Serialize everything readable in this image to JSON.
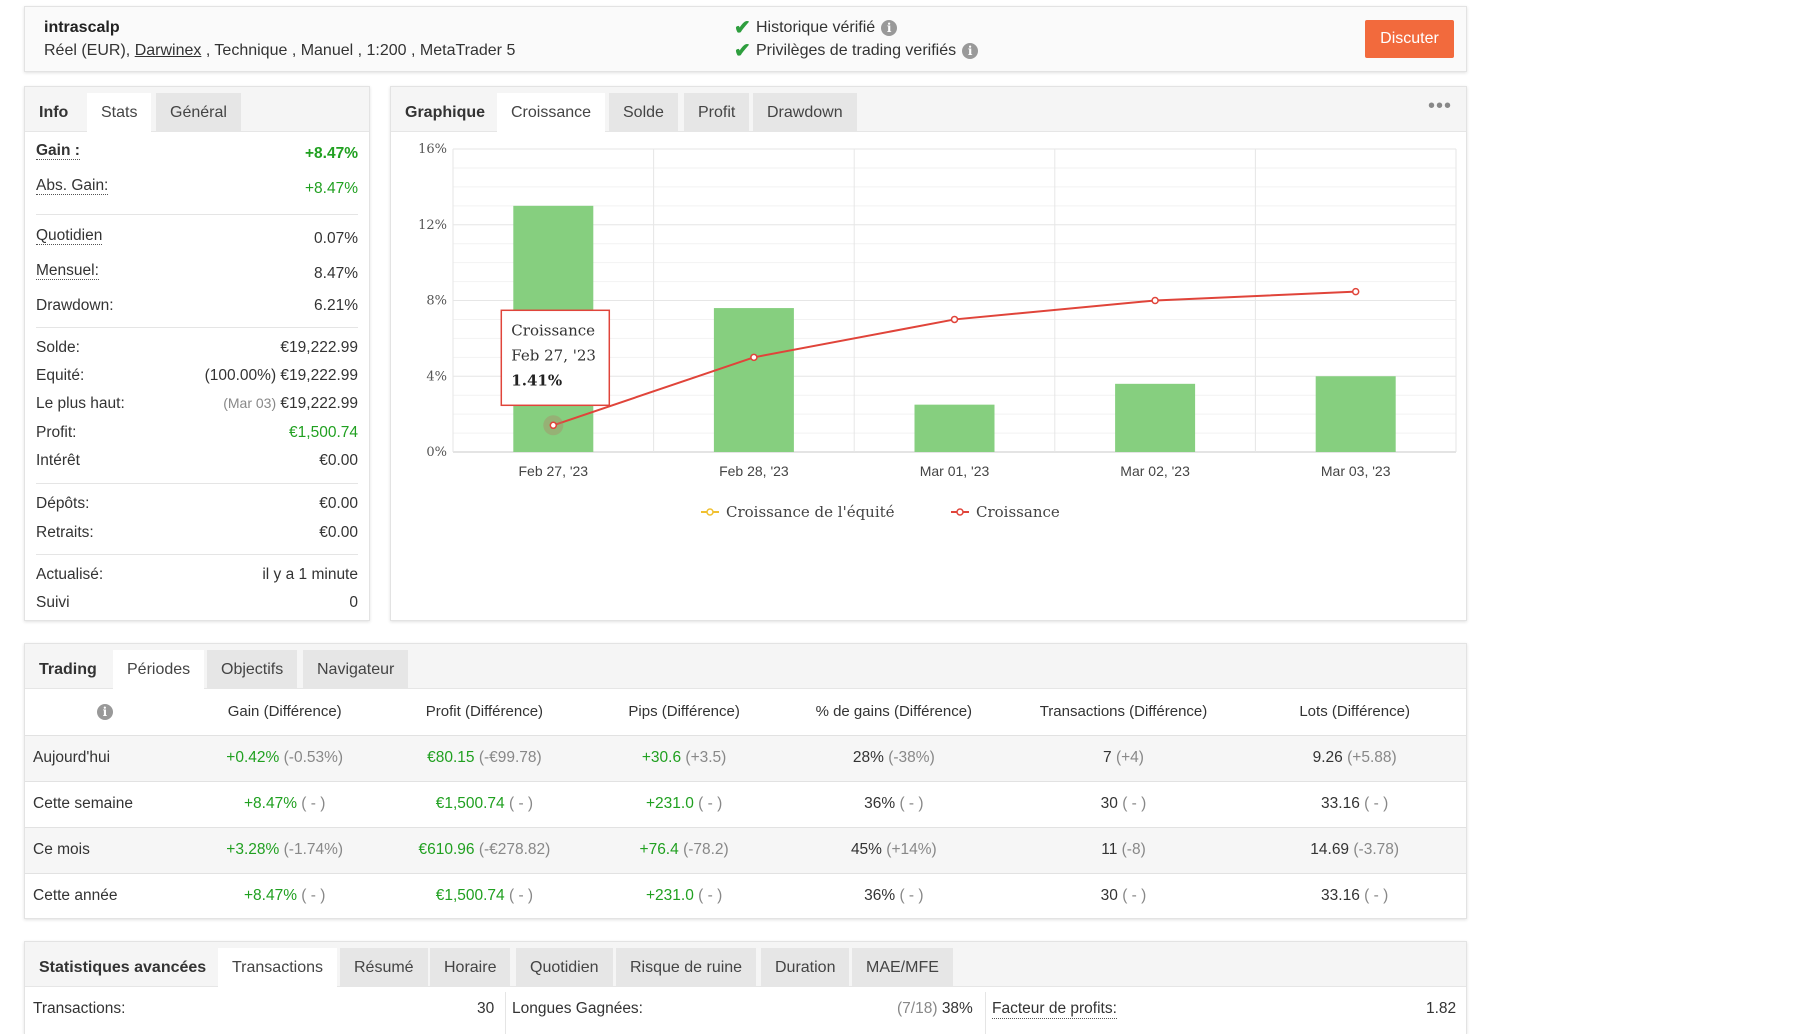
{
  "header": {
    "account_name": "intrascalp",
    "account_prefix": "Réel (EUR), ",
    "account_broker": "Darwinex",
    "account_suffix": " , Technique , Manuel , 1:200 , MetaTrader 5",
    "verified_history": "Historique vérifié",
    "verified_privileges": "Privilèges de trading verifiés",
    "discuss_button": "Discuter"
  },
  "info_panel": {
    "tabs": [
      "Info",
      "Stats",
      "Général"
    ],
    "gain_label": "Gain :",
    "gain_value": "+8.47%",
    "abs_gain_label": "Abs. Gain:",
    "abs_gain_value": "+8.47%",
    "daily_label": "Quotidien",
    "daily_value": "0.07%",
    "monthly_label": "Mensuel:",
    "monthly_value": "8.47%",
    "drawdown_label": "Drawdown:",
    "drawdown_value": "6.21%",
    "balance_label": "Solde:",
    "balance_value": "€19,222.99",
    "equity_label": "Equité:",
    "equity_pct": "(100.00%)",
    "equity_value": "€19,222.99",
    "highest_label": "Le plus haut:",
    "highest_date": "(Mar 03)",
    "highest_value": "€19,222.99",
    "profit_label": "Profit:",
    "profit_value": "€1,500.74",
    "interest_label": "Intérêt",
    "interest_value": "€0.00",
    "deposits_label": "Dépôts:",
    "deposits_value": "€0.00",
    "withdrawals_label": "Retraits:",
    "withdrawals_value": "€0.00",
    "updated_label": "Actualisé:",
    "updated_value": "il y a 1 minute",
    "followers_label": "Suivi",
    "followers_value": "0"
  },
  "chart_panel": {
    "tabs": [
      "Graphique",
      "Croissance",
      "Solde",
      "Profit",
      "Drawdown"
    ],
    "more_icon": "more-dots-icon"
  },
  "chart_data": {
    "type": "bar",
    "categories": [
      "Feb 27, '23",
      "Feb 28, '23",
      "Mar 01, '23",
      "Mar 02, '23",
      "Mar 03, '23"
    ],
    "series": [
      {
        "name": "Croissance de l'équité",
        "type": "bar",
        "color": "#86cf7f",
        "values": [
          13.0,
          7.6,
          2.5,
          3.6,
          4.0
        ]
      },
      {
        "name": "Croissance",
        "type": "line",
        "color": "#e0443a",
        "values": [
          1.41,
          5.0,
          7.0,
          8.0,
          8.47
        ]
      }
    ],
    "ylim": [
      0,
      16
    ],
    "yticks": [
      "0%",
      "4%",
      "8%",
      "12%",
      "16%"
    ],
    "tooltip": {
      "title": "Croissance",
      "date": "Feb 27, '23",
      "value": "1.41%"
    },
    "legend_position": "bottom",
    "grid": true
  },
  "trading_panel": {
    "tabs": [
      "Trading",
      "Périodes",
      "Objectifs",
      "Navigateur"
    ],
    "columns": [
      "Gain (Différence)",
      "Profit (Différence)",
      "Pips (Différence)",
      "% de gains (Différence)",
      "Transactions (Différence)",
      "Lots (Différence)"
    ],
    "rows": [
      {
        "label": "Aujourd'hui",
        "gain": "+0.42%",
        "gain_diff": "(-0.53%)",
        "profit": "€80.15",
        "profit_diff": "(-€99.78)",
        "pips": "+30.6",
        "pips_diff": "(+3.5)",
        "win": "28%",
        "win_diff": "(-38%)",
        "trades": "7",
        "trades_diff": "(+4)",
        "lots": "9.26",
        "lots_diff": "(+5.88)"
      },
      {
        "label": "Cette semaine",
        "gain": "+8.47%",
        "gain_diff": "( - )",
        "profit": "€1,500.74",
        "profit_diff": "( - )",
        "pips": "+231.0",
        "pips_diff": "( - )",
        "win": "36%",
        "win_diff": "( - )",
        "trades": "30",
        "trades_diff": "( - )",
        "lots": "33.16",
        "lots_diff": "( - )"
      },
      {
        "label": "Ce mois",
        "gain": "+3.28%",
        "gain_diff": "(-1.74%)",
        "profit": "€610.96",
        "profit_diff": "(-€278.82)",
        "pips": "+76.4",
        "pips_diff": "(-78.2)",
        "win": "45%",
        "win_diff": "(+14%)",
        "trades": "11",
        "trades_diff": "(-8)",
        "lots": "14.69",
        "lots_diff": "(-3.78)"
      },
      {
        "label": "Cette année",
        "gain": "+8.47%",
        "gain_diff": "( - )",
        "profit": "€1,500.74",
        "profit_diff": "( - )",
        "pips": "+231.0",
        "pips_diff": "( - )",
        "win": "36%",
        "win_diff": "( - )",
        "trades": "30",
        "trades_diff": "( - )",
        "lots": "33.16",
        "lots_diff": "( - )"
      }
    ]
  },
  "advanced_panel": {
    "tabs": [
      "Statistiques avancées",
      "Transactions",
      "Résumé",
      "Horaire",
      "Quotidien",
      "Risque de ruine",
      "Duration",
      "MAE/MFE"
    ],
    "transactions_label": "Transactions:",
    "transactions_value": "30",
    "long_won_label": "Longues Gagnées:",
    "long_won_ratio": "(7/18)",
    "long_won_pct": "38%",
    "profit_factor_label": "Facteur de profits:",
    "profit_factor_value": "1.82"
  }
}
